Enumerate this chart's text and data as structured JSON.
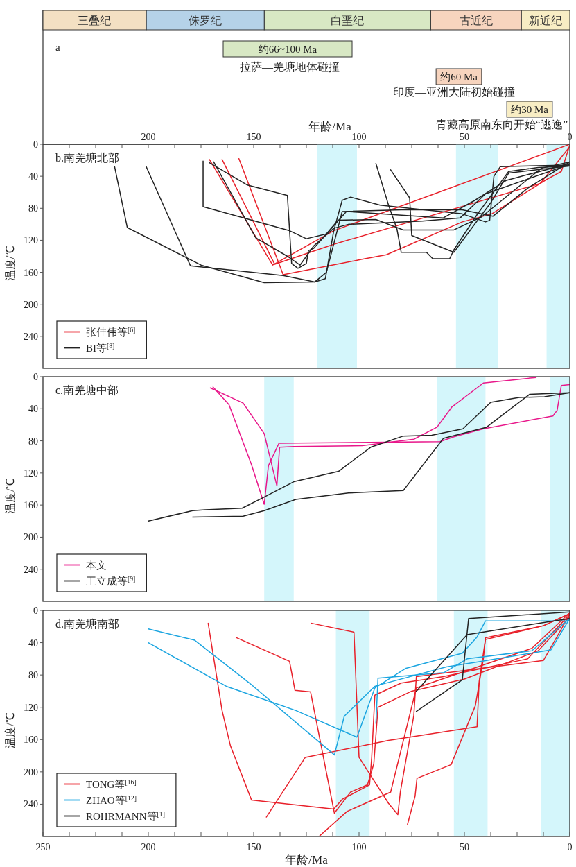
{
  "chart_data": [
    {
      "type": "bar",
      "orientation": "horizontal",
      "stacked": true,
      "categories": [
        null
      ],
      "xlim": [
        250,
        0
      ],
      "annotations": [
        "a",
        "约66~100 Ma",
        "拉萨—羌塘地体碰撞",
        "约60 Ma",
        "印度—亚洲大陆初始碰撞",
        "约30 Ma",
        "青藏高原南东向开始“逃逸”"
      ],
      "series": [
        {
          "name": "新近纪",
          "color": "#f8edc4",
          "values": [
            23
          ]
        },
        {
          "name": "古近纪",
          "color": "#f7d4be",
          "values": [
            43
          ]
        },
        {
          "name": "白垩纪",
          "color": "#d8e8c4",
          "values": [
            79
          ]
        },
        {
          "name": "侏罗纪",
          "color": "#b5d2e8",
          "values": [
            56
          ]
        },
        {
          "name": "三叠纪",
          "color": "#f3e0c3",
          "values": [
            49
          ]
        }
      ]
    },
    {
      "type": "line",
      "title": "b.南羌塘北部",
      "ylabel": "温度/℃",
      "xlim": [
        250,
        0
      ],
      "ylim": [
        280,
        0
      ],
      "yticks": [
        0,
        40,
        80,
        120,
        160,
        200,
        240
      ],
      "legend": "bottom left",
      "x2label": "年龄/Ma",
      "x2lim": [
        250,
        0
      ],
      "x2ticks": [
        {
          "value": 237.5,
          "label": null
        },
        {
          "value": 225,
          "label": null
        },
        {
          "value": 212.5,
          "label": null
        },
        200,
        {
          "value": 187.5,
          "label": null
        },
        {
          "value": 175,
          "label": null
        },
        {
          "value": 162.5,
          "label": null
        },
        150,
        {
          "value": 137.5,
          "label": null
        },
        {
          "value": 125,
          "label": null
        },
        {
          "value": 112.5,
          "label": null
        },
        100,
        {
          "value": 87.5,
          "label": null
        },
        {
          "value": 75,
          "label": null
        },
        {
          "value": 62.5,
          "label": null
        },
        50,
        {
          "value": 37.5,
          "label": null
        },
        {
          "value": 25,
          "label": null
        },
        {
          "value": 12.5,
          "label": null
        },
        0
      ],
      "bands": [
        {
          "axis": "x",
          "from": 120,
          "to": 101,
          "color": "#d4f6fb"
        },
        {
          "axis": "x",
          "from": 54,
          "to": 34,
          "color": "#d4f6fb"
        },
        {
          "axis": "x",
          "from": 11,
          "to": 0,
          "color": "#d4f6fb"
        }
      ],
      "series": [
        {
          "name": "张佳伟等$^{[6]}$",
          "color": "#e8202a",
          "x": [
            171,
            141,
            112,
            0
          ],
          "values": [
            19,
            151,
            108,
            0
          ]
        },
        {
          "color": "#e8202a",
          "x": [
            165,
            140,
            112,
            14,
            0
          ],
          "values": [
            19,
            150,
            125,
            49,
            3
          ]
        },
        {
          "color": "#e8202a",
          "x": [
            157,
            136,
            99,
            87,
            51,
            37,
            11,
            4,
            0
          ],
          "values": [
            18,
            163,
            144,
            138,
            97,
            87,
            44,
            34,
            1
          ]
        },
        {
          "name": "BI等$^{[8]}$",
          "color": "#222222",
          "x": [
            216,
            210,
            175,
            145,
            121,
            116,
            112,
            108,
            104,
            90,
            51,
            40,
            38,
            36,
            33,
            0
          ],
          "values": [
            28,
            104,
            151,
            173,
            172,
            168,
            108,
            70,
            66,
            76,
            87,
            97,
            95,
            40,
            28,
            26
          ]
        },
        {
          "color": "#222222",
          "x": [
            201,
            180,
            136,
            121,
            115.5,
            108,
            80,
            51,
            36.5,
            20,
            0
          ],
          "values": [
            28,
            152,
            164,
            172,
            160,
            84,
            82,
            82,
            90,
            55,
            22
          ]
        },
        {
          "color": "#222222",
          "x": [
            174,
            174,
            133,
            125,
            115.5,
            110,
            92,
            79,
            55,
            42,
            13.5,
            0
          ],
          "values": [
            21,
            78,
            108,
            118,
            112,
            95,
            94,
            107,
            107,
            91,
            30,
            22
          ]
        },
        {
          "color": "#222222",
          "x": [
            171,
            153,
            134,
            132,
            129,
            125,
            124,
            121.5,
            106,
            60,
            45,
            30,
            0
          ],
          "values": [
            23,
            51,
            64,
            149,
            155,
            149,
            133,
            130,
            84,
            92,
            70,
            45,
            24
          ]
        },
        {
          "color": "#222222",
          "x": [
            169,
            149,
            134,
            128,
            121.5,
            112,
            105,
            70,
            52,
            40,
            0
          ],
          "values": [
            22,
            117,
            140,
            151,
            127,
            105,
            100,
            96,
            92,
            62,
            25
          ]
        },
        {
          "color": "#222222",
          "x": [
            92,
            86,
            82,
            80,
            68,
            65,
            57,
            55,
            44,
            29,
            15,
            0
          ],
          "values": [
            24,
            76,
            106,
            135,
            135,
            143,
            143,
            132,
            88,
            34,
            29,
            27
          ]
        },
        {
          "color": "#222222",
          "x": [
            85,
            76,
            75,
            55,
            46,
            37.5,
            29,
            0
          ],
          "values": [
            32,
            67,
            114,
            135,
            103,
            73,
            36,
            27
          ]
        }
      ]
    },
    {
      "type": "line",
      "title": "c.南羌塘中部",
      "ylabel": "温度/℃",
      "xlim": [
        250,
        0
      ],
      "ylim": [
        280,
        0
      ],
      "yticks": [
        0,
        40,
        80,
        120,
        160,
        200,
        240
      ],
      "legend": "bottom left",
      "bands": [
        {
          "axis": "x",
          "from": 145,
          "to": 131,
          "color": "#d4f6fb"
        },
        {
          "axis": "x",
          "from": 63,
          "to": 40,
          "color": "#d4f6fb"
        },
        {
          "axis": "x",
          "from": 9.5,
          "to": 0,
          "color": "#d4f6fb"
        }
      ],
      "series": [
        {
          "name": "本文",
          "color": "#e8178a",
          "x": [
            170.6,
            155,
            145,
            139,
            137.7,
            131,
            98.5,
            74,
            63,
            56,
            41,
            16
          ],
          "values": [
            14,
            33,
            71,
            136,
            88,
            87,
            86,
            78,
            63,
            38,
            8,
            1
          ]
        },
        {
          "color": "#e8178a",
          "x": [
            169.3,
            161.7,
            151,
            145,
            143,
            138,
            61.6,
            55,
            41,
            8,
            6,
            4,
            0
          ],
          "values": [
            13,
            35,
            110,
            159,
            111,
            83,
            81,
            75,
            65,
            49,
            42,
            11,
            10
          ]
        },
        {
          "name": "王立成等$^{[9]}$",
          "color": "#222222",
          "x": [
            200,
            179,
            173,
            155.5,
            145,
            131,
            109.7,
            94.5,
            79,
            65.5,
            50.7,
            37.5,
            24,
            12,
            0
          ],
          "values": [
            180,
            167,
            166,
            164,
            150,
            131,
            118,
            88,
            74,
            73,
            65,
            32,
            26,
            25,
            20
          ]
        },
        {
          "color": "#222222",
          "x": [
            179,
            155,
            145,
            130,
            105,
            79,
            60,
            39.5,
            19,
            9,
            0
          ],
          "values": [
            175,
            174,
            167,
            153,
            145,
            142,
            77,
            63,
            22,
            21,
            20
          ]
        }
      ]
    },
    {
      "type": "line",
      "title": "d.南羌塘南部",
      "xlabel": "年龄/Ma",
      "ylabel": "温度/℃",
      "xlim": [
        250,
        0
      ],
      "ylim": [
        280,
        0
      ],
      "yticks": [
        0,
        40,
        80,
        120,
        160,
        200,
        240
      ],
      "legend": "bottom left",
      "xticks": [
        250,
        {
          "value": 237.5,
          "label": null
        },
        {
          "value": 225,
          "label": null
        },
        {
          "value": 212.5,
          "label": null
        },
        200,
        {
          "value": 187.5,
          "label": null
        },
        {
          "value": 175,
          "label": null
        },
        {
          "value": 162.5,
          "label": null
        },
        150,
        {
          "value": 137.5,
          "label": null
        },
        {
          "value": 125,
          "label": null
        },
        {
          "value": 112.5,
          "label": null
        },
        100,
        {
          "value": 87.5,
          "label": null
        },
        {
          "value": 75,
          "label": null
        },
        {
          "value": 62.5,
          "label": null
        },
        50,
        {
          "value": 37.5,
          "label": null
        },
        {
          "value": 25,
          "label": null
        },
        {
          "value": 12.5,
          "label": null
        },
        0
      ],
      "bands": [
        {
          "axis": "x",
          "from": 111,
          "to": 95,
          "color": "#d4f6fb"
        },
        {
          "axis": "x",
          "from": 55,
          "to": 39,
          "color": "#d4f6fb"
        },
        {
          "axis": "x",
          "from": 13.5,
          "to": 0,
          "color": "#d4f6fb"
        }
      ],
      "series": [
        {
          "name": "TONG等$^{[16]}$",
          "color": "#e8202a",
          "x": [
            171.6,
            165,
            161,
            151,
            112,
            108,
            95,
            94,
            92.5,
            80,
            60,
            20,
            0
          ],
          "values": [
            16,
            124,
            168,
            235,
            246,
            234,
            216,
            182,
            105,
            90,
            82,
            60,
            5
          ]
        },
        {
          "color": "#e8202a",
          "x": [
            158,
            133,
            130.4,
            123,
            111.7,
            104,
            96,
            93,
            91,
            75,
            50,
            15,
            0
          ],
          "values": [
            34,
            63,
            99,
            101,
            251,
            225,
            216,
            190,
            120,
            100,
            85,
            50,
            8
          ]
        },
        {
          "color": "#e8202a",
          "x": [
            144,
            125.5,
            86,
            44,
            43,
            40,
            12.5,
            0
          ],
          "values": [
            256,
            182,
            161,
            144,
            88,
            36,
            19,
            4
          ]
        },
        {
          "color": "#e8202a",
          "x": [
            122.5,
            102.4,
            100,
            86,
            81.6,
            80.4,
            74,
            72.8,
            12.5,
            0
          ],
          "values": [
            16,
            27,
            182,
            239,
            253,
            225,
            130,
            82,
            62,
            5
          ]
        },
        {
          "color": "#e8202a",
          "x": [
            119,
            105.7,
            85,
            72.8,
            18,
            0
          ],
          "values": [
            280,
            249,
            225,
            96,
            47,
            3
          ]
        },
        {
          "color": "#e8202a",
          "x": [
            77,
            73.4,
            72.5,
            56.3,
            44.8,
            41,
            40,
            12.5,
            0
          ],
          "values": [
            265,
            230,
            208,
            191,
            118,
            60,
            34,
            19,
            4
          ]
        },
        {
          "name": "ZHAO等$^{[12]}$",
          "color": "#1ba5e0",
          "x": [
            200,
            178,
            152,
            111.7,
            107,
            92.5,
            90,
            58.6,
            44,
            9,
            0
          ],
          "values": [
            23,
            37,
            90,
            179,
            131,
            94,
            92,
            70,
            64,
            49,
            10
          ]
        },
        {
          "color": "#1ba5e0",
          "x": [
            200,
            163,
            130,
            101,
            92.5,
            78,
            51,
            44,
            40,
            0
          ],
          "values": [
            40,
            94,
            124,
            157,
            96,
            72,
            53,
            33,
            13,
            13
          ]
        },
        {
          "color": "#1ba5e0",
          "x": [
            92,
            91,
            59.6,
            48.7,
            18,
            0
          ],
          "values": [
            140,
            84,
            77,
            60,
            50,
            10
          ]
        },
        {
          "name": "ROHRMANN等$^{[1]}$",
          "color": "#222222",
          "x": [
            72.8,
            51,
            48,
            0
          ],
          "values": [
            125,
            86,
            10,
            2
          ]
        },
        {
          "color": "#222222",
          "x": [
            72.8,
            48.7,
            0
          ],
          "values": [
            100,
            30,
            10
          ]
        }
      ]
    }
  ]
}
